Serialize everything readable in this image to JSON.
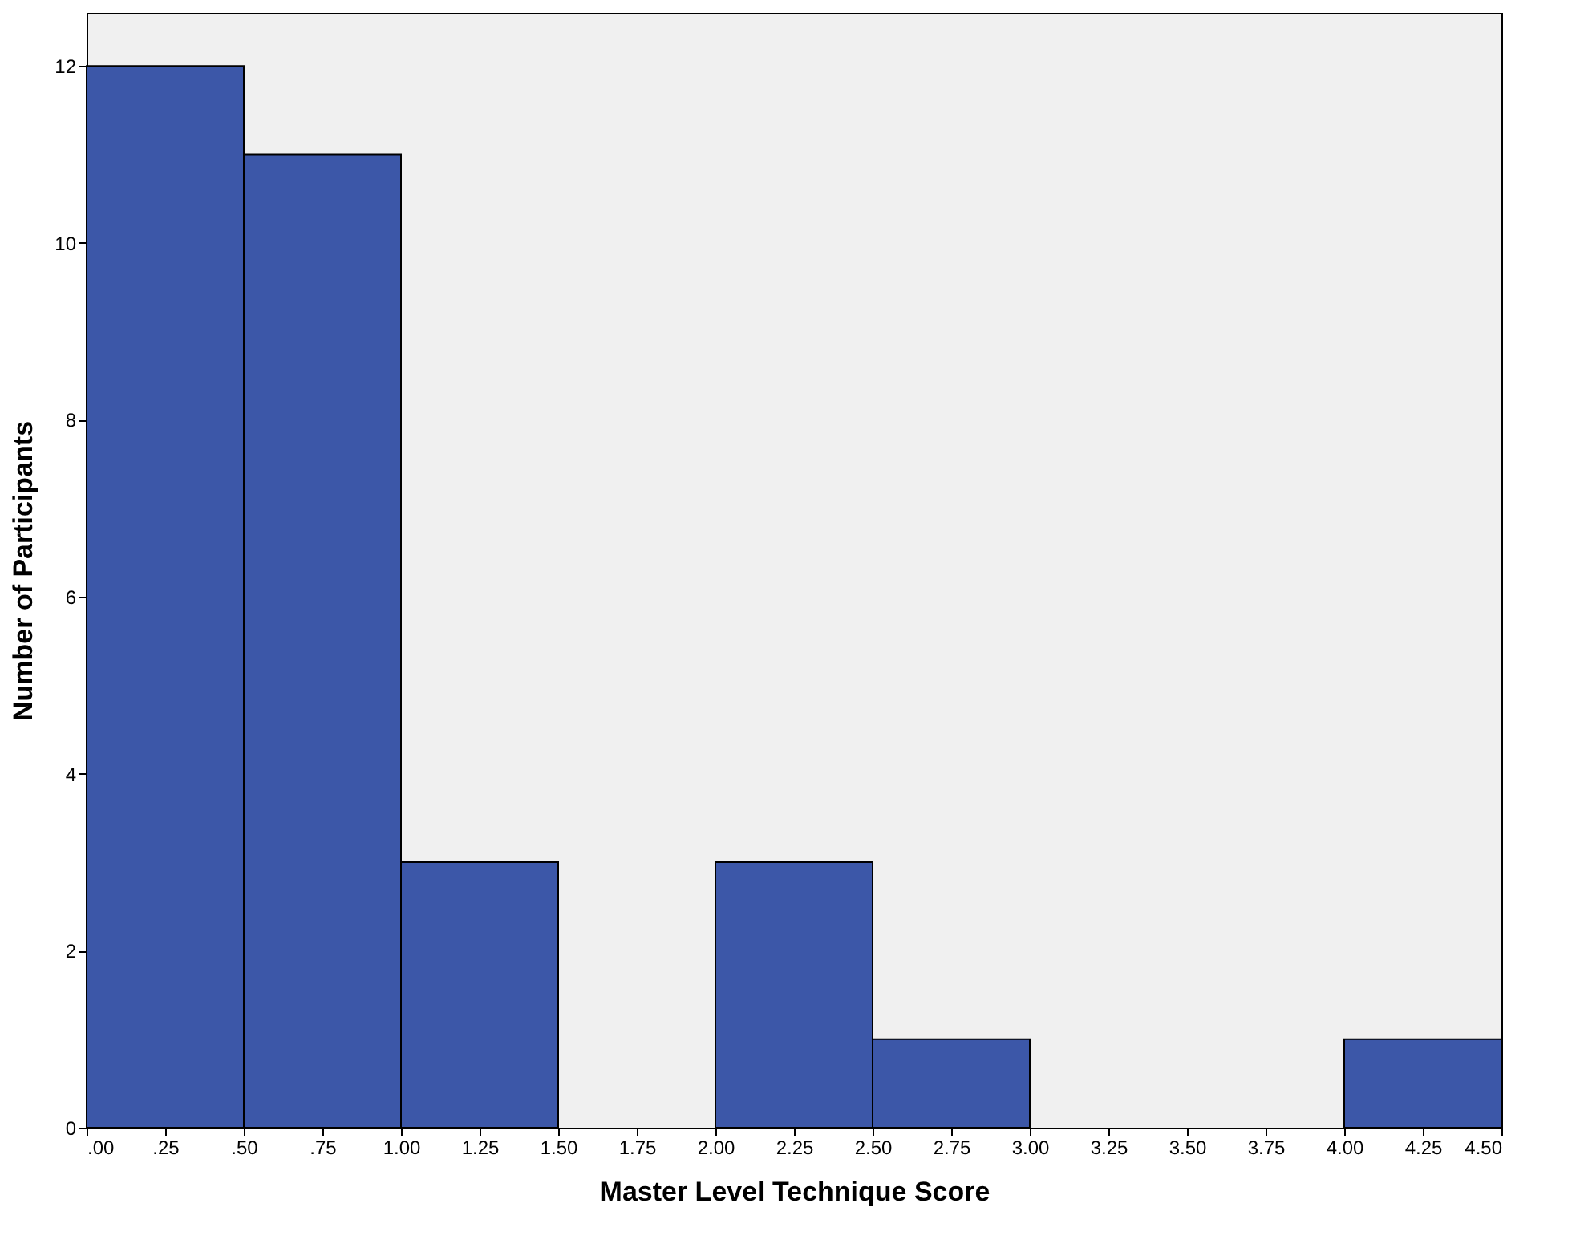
{
  "chart_data": {
    "type": "histogram",
    "xlabel": "Master Level Technique Score",
    "ylabel": "Number of Participants",
    "bins": [
      0,
      0.5,
      1,
      1.5,
      2,
      2.5,
      3,
      3.5,
      4,
      4.5
    ],
    "values": [
      12,
      11,
      3,
      0,
      3,
      1,
      0,
      0,
      1
    ],
    "color": "#3c57a8",
    "xlim": [
      0,
      4.5
    ],
    "xticks": [
      {
        "value": 0,
        "label": ".00"
      },
      {
        "value": 0.25,
        "label": ".25"
      },
      {
        "value": 0.5,
        "label": ".50"
      },
      {
        "value": 0.75,
        "label": ".75"
      },
      {
        "value": 1,
        "label": "1.00"
      },
      {
        "value": 1.25,
        "label": "1.25"
      },
      {
        "value": 1.5,
        "label": "1.50"
      },
      {
        "value": 1.75,
        "label": "1.75"
      },
      {
        "value": 2,
        "label": "2.00"
      },
      {
        "value": 2.25,
        "label": "2.25"
      },
      {
        "value": 2.5,
        "label": "2.50"
      },
      {
        "value": 2.75,
        "label": "2.75"
      },
      {
        "value": 3,
        "label": "3.00"
      },
      {
        "value": 3.25,
        "label": "3.25"
      },
      {
        "value": 3.5,
        "label": "3.50"
      },
      {
        "value": 3.75,
        "label": "3.75"
      },
      {
        "value": 4,
        "label": "4.00"
      },
      {
        "value": 4.25,
        "label": "4.25"
      },
      {
        "value": 4.5,
        "label": "4.50"
      }
    ],
    "ylim": [
      0,
      12.6
    ],
    "yticks": [
      0,
      2,
      4,
      6,
      8,
      10,
      12
    ],
    "grid": false
  }
}
